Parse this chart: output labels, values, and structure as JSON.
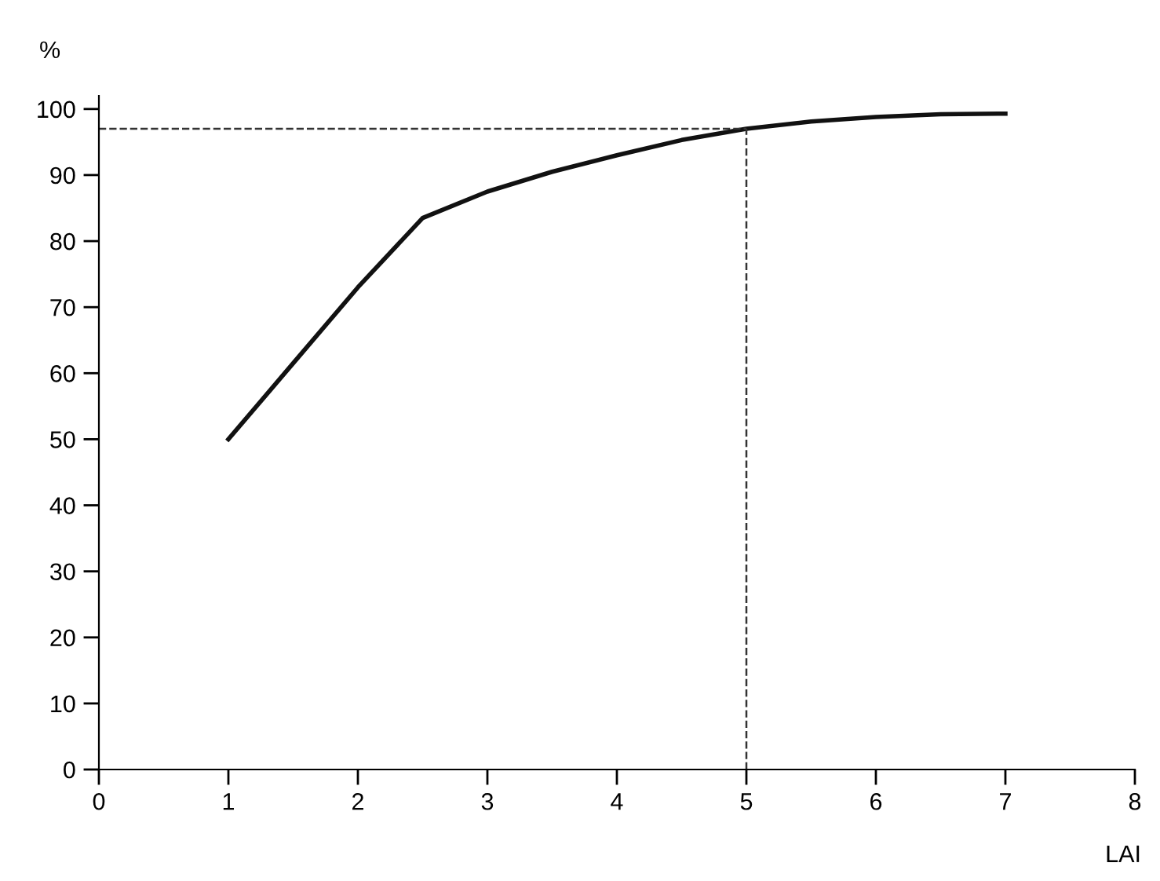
{
  "chart_data": {
    "type": "line",
    "xlabel": "LAI",
    "ylabel": "%",
    "series": [
      {
        "color": "#111111",
        "x": [
          1,
          1.5,
          2,
          2.5,
          3,
          3.5,
          4,
          4.5,
          5,
          5.5,
          6,
          6.5,
          7
        ],
        "values": [
          50,
          61.5,
          73,
          83.5,
          87.5,
          90.5,
          93,
          95.3,
          97,
          98.1,
          98.8,
          99.2,
          99.3
        ]
      }
    ],
    "xlim": [
      0,
      8
    ],
    "xticks": [
      0,
      1,
      2,
      3,
      4,
      5,
      6,
      7,
      8
    ],
    "ylim": [
      0,
      102
    ],
    "yticks": [
      0,
      10,
      20,
      30,
      40,
      50,
      60,
      70,
      80,
      90,
      100
    ],
    "ref_lines": [
      {
        "axis": "y",
        "value": 97,
        "line_style": "dashed",
        "color": "#333333"
      },
      {
        "axis": "x",
        "value": 5,
        "line_style": "dashed",
        "color": "#333333"
      }
    ],
    "grid": false,
    "legend": false,
    "marker": "none",
    "line_style": "solid"
  }
}
